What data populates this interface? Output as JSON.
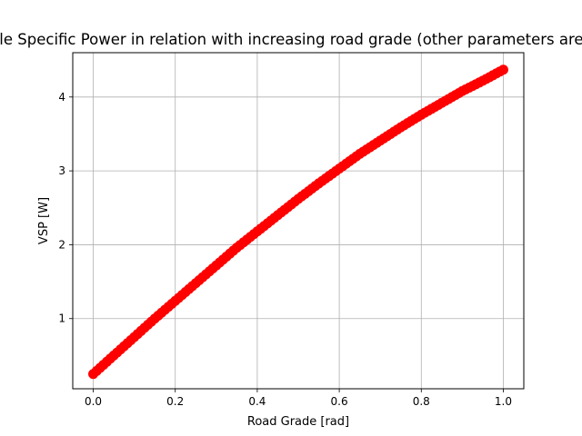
{
  "chart_data": {
    "type": "scatter",
    "title": "Vehicle Specific Power in relation with increasing road grade (other parameters are constant)",
    "xlabel": "Road Grade [rad]",
    "ylabel": "VSP [W]",
    "xlim": [
      -0.05,
      1.05
    ],
    "ylim": [
      0.05,
      4.6
    ],
    "xticks": [
      0.0,
      0.2,
      0.4,
      0.6,
      0.8,
      1.0
    ],
    "xtick_labels": [
      "0.0",
      "0.2",
      "0.4",
      "0.6",
      "0.8",
      "1.0"
    ],
    "yticks": [
      1,
      2,
      3,
      4
    ],
    "ytick_labels": [
      "1",
      "2",
      "3",
      "4"
    ],
    "grid": true,
    "marker_color": "#ff0000",
    "series": [
      {
        "x": [
          0.0,
          0.05,
          0.1,
          0.15,
          0.2,
          0.25,
          0.3,
          0.35,
          0.4,
          0.45,
          0.5,
          0.55,
          0.6,
          0.65,
          0.7,
          0.75,
          0.8,
          0.85,
          0.9,
          0.95,
          1.0
        ],
        "y": [
          0.25,
          0.5,
          0.75,
          1.0,
          1.24,
          1.48,
          1.72,
          1.96,
          2.18,
          2.4,
          2.62,
          2.83,
          3.03,
          3.23,
          3.41,
          3.59,
          3.76,
          3.92,
          4.08,
          4.22,
          4.37
        ]
      }
    ]
  }
}
